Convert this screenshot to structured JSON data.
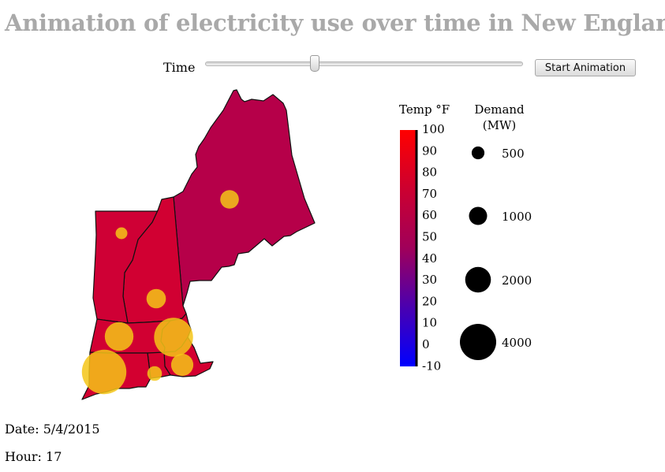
{
  "title": "Animation of electricity use over time in New England",
  "controls": {
    "time_label": "Time",
    "slider_value_fraction": 0.345,
    "button_label": "Start Animation"
  },
  "states": [
    {
      "name": "Maine",
      "temp_f": 64,
      "demand_mw": 1050
    },
    {
      "name": "New Hampshire",
      "temp_f": 79,
      "demand_mw": 1150
    },
    {
      "name": "Vermont",
      "temp_f": 78,
      "demand_mw": 430
    },
    {
      "name": "Massachusetts",
      "temp_f": 79,
      "demand_mw": 2500
    },
    {
      "name": "Southeast Massachusetts",
      "temp_f": 80,
      "demand_mw": 1500
    },
    {
      "name": "Northeast Massachusetts",
      "temp_f": 79,
      "demand_mw": 4600
    },
    {
      "name": "Connecticut",
      "temp_f": 80,
      "demand_mw": 6000
    },
    {
      "name": "Rhode Island",
      "temp_f": 80,
      "demand_mw": 650
    }
  ],
  "temp_legend": {
    "title": "Temp °F",
    "ticks": [
      "100",
      "90",
      "80",
      "70",
      "60",
      "50",
      "40",
      "30",
      "20",
      "10",
      "0",
      "-10"
    ],
    "colors": {
      "hot": "#ff0000",
      "mid": "#c8003f",
      "cold": "#0000ff"
    }
  },
  "demand_legend": {
    "title_line1": "Demand",
    "title_line2": "(MW)",
    "entries": [
      {
        "label": "500",
        "mw": 500
      },
      {
        "label": "1000",
        "mw": 1000
      },
      {
        "label": "2000",
        "mw": 2000
      },
      {
        "label": "4000",
        "mw": 4000
      }
    ]
  },
  "bubble_color": "#f5c518",
  "date_line": "Date: 5/4/2015",
  "hour_line": "Hour: 17"
}
